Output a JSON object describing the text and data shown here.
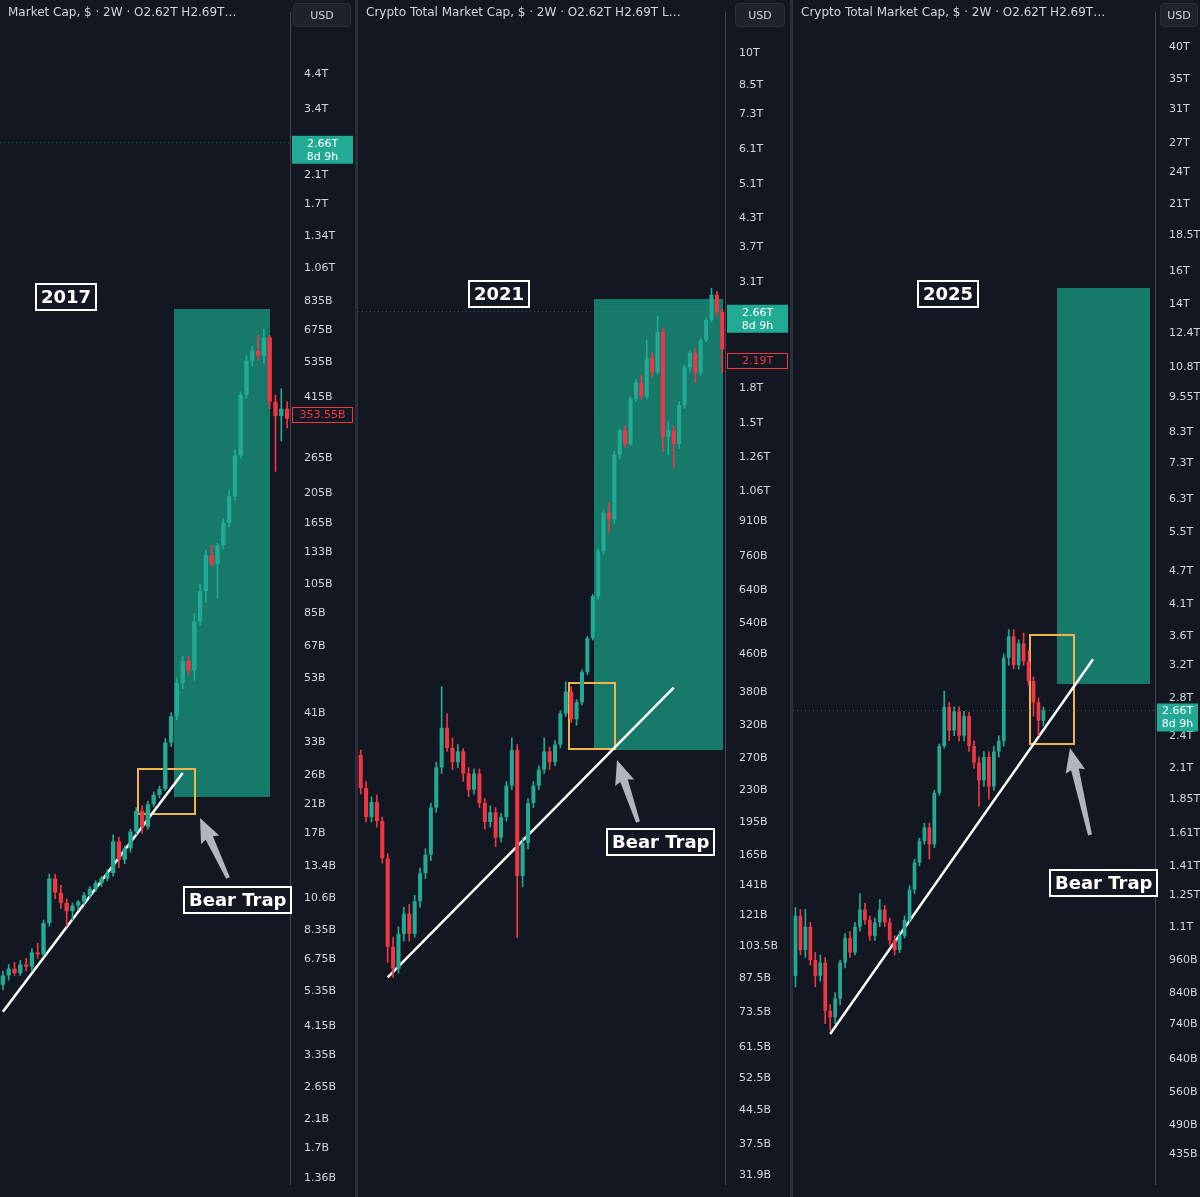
{
  "chart_data": [
    {
      "type": "candlestick",
      "title": "Market Cap, $ · 2W · O2.62T H2.69T…",
      "log": "y",
      "tick_labels": "y",
      "ylim": [
        1300000000.0,
        6900000000000.0
      ],
      "yticks": [
        {
          "value": 4400000000000.0,
          "label": "4.4T"
        },
        {
          "value": 3400000000000.0,
          "label": "3.4T"
        },
        {
          "value": 2100000000000.0,
          "label": "2.1T"
        },
        {
          "value": 1700000000000.0,
          "label": "1.7T"
        },
        {
          "value": 1340000000000.0,
          "label": "1.34T"
        },
        {
          "value": 1060000000000.0,
          "label": "1.06T"
        },
        {
          "value": 835000000000.0,
          "label": "835B"
        },
        {
          "value": 675000000000.0,
          "label": "675B"
        },
        {
          "value": 535000000000.0,
          "label": "535B"
        },
        {
          "value": 415000000000.0,
          "label": "415B"
        },
        {
          "value": 265000000000.0,
          "label": "265B"
        },
        {
          "value": 205000000000.0,
          "label": "205B"
        },
        {
          "value": 165000000000.0,
          "label": "165B"
        },
        {
          "value": 133000000000.0,
          "label": "133B"
        },
        {
          "value": 105000000000.0,
          "label": "105B"
        },
        {
          "value": 85000000000.0,
          "label": "85B"
        },
        {
          "value": 67000000000.0,
          "label": "67B"
        },
        {
          "value": 53000000000.0,
          "label": "53B"
        },
        {
          "value": 41000000000.0,
          "label": "41B"
        },
        {
          "value": 33000000000.0,
          "label": "33B"
        },
        {
          "value": 26000000000.0,
          "label": "26B"
        },
        {
          "value": 21000000000.0,
          "label": "21B"
        },
        {
          "value": 17000000000.0,
          "label": "17B"
        },
        {
          "value": 13400000000.0,
          "label": "13.4B"
        },
        {
          "value": 10600000000.0,
          "label": "10.6B"
        },
        {
          "value": 8350000000.0,
          "label": "8.35B"
        },
        {
          "value": 6750000000.0,
          "label": "6.75B"
        },
        {
          "value": 5350000000.0,
          "label": "5.35B"
        },
        {
          "value": 4150000000.0,
          "label": "4.15B"
        },
        {
          "value": 3350000000.0,
          "label": "3.35B"
        },
        {
          "value": 2650000000.0,
          "label": "2.65B"
        },
        {
          "value": 2100000000.0,
          "label": "2.1B"
        },
        {
          "value": 1700000000.0,
          "label": "1.7B"
        },
        {
          "value": 1360000000.0,
          "label": "1.36B"
        }
      ],
      "categories": [
        null,
        null,
        null,
        null,
        null,
        null,
        null,
        null,
        null,
        null,
        null,
        null,
        null,
        null,
        null,
        null,
        null,
        null,
        null,
        null,
        null,
        null,
        null,
        null,
        null,
        null,
        null,
        null,
        null,
        null,
        null,
        null,
        null,
        null,
        null,
        null,
        null,
        null,
        null,
        null,
        null,
        null,
        null,
        null,
        null,
        null,
        null,
        null,
        null,
        null
      ],
      "ohlc": [
        [
          5600000000.0,
          6200000000.0,
          5400000000.0,
          6000000000.0
        ],
        [
          6000000000.0,
          6500000000.0,
          5800000000.0,
          6300000000.0
        ],
        [
          6300000000.0,
          6600000000.0,
          6000000000.0,
          6100000000.0
        ],
        [
          6100000000.0,
          6700000000.0,
          6000000000.0,
          6500000000.0
        ],
        [
          6500000000.0,
          6800000000.0,
          6200000000.0,
          6400000000.0
        ],
        [
          6400000000.0,
          7300000000.0,
          6200000000.0,
          7100000000.0
        ],
        [
          7100000000.0,
          7600000000.0,
          6800000000.0,
          7000000000.0
        ],
        [
          7000000000.0,
          9000000000.0,
          6900000000.0,
          8800000000.0
        ],
        [
          8800000000.0,
          12600000000.0,
          8600000000.0,
          12200000000.0
        ],
        [
          12200000000.0,
          12600000000.0,
          10500000000.0,
          11000000000.0
        ],
        [
          11000000000.0,
          11600000000.0,
          9800000000.0,
          10200000000.0
        ],
        [
          10200000000.0,
          10500000000.0,
          8600000000.0,
          9600000000.0
        ],
        [
          9600000000.0,
          10200000000.0,
          9000000000.0,
          10000000000.0
        ],
        [
          10000000000.0,
          10400000000.0,
          9700000000.0,
          10300000000.0
        ],
        [
          10300000000.0,
          11000000000.0,
          10100000000.0,
          10800000000.0
        ],
        [
          10800000000.0,
          11500000000.0,
          10600000000.0,
          11300000000.0
        ],
        [
          11300000000.0,
          12000000000.0,
          11100000000.0,
          11800000000.0
        ],
        [
          11800000000.0,
          12400000000.0,
          11500000000.0,
          12200000000.0
        ],
        [
          12200000000.0,
          13000000000.0,
          12000000000.0,
          12700000000.0
        ],
        [
          12700000000.0,
          16800000000.0,
          12400000000.0,
          16000000000.0
        ],
        [
          16000000000.0,
          16500000000.0,
          13200000000.0,
          14000000000.0
        ],
        [
          14000000000.0,
          15500000000.0,
          13600000000.0,
          15200000000.0
        ],
        [
          15200000000.0,
          17500000000.0,
          14800000000.0,
          17200000000.0
        ],
        [
          17200000000.0,
          20500000000.0,
          16800000000.0,
          20000000000.0
        ],
        [
          20000000000.0,
          20800000000.0,
          17000000000.0,
          17800000000.0
        ],
        [
          17800000000.0,
          21500000000.0,
          17500000000.0,
          21000000000.0
        ],
        [
          21000000000.0,
          23000000000.0,
          20600000000.0,
          22500000000.0
        ],
        [
          22500000000.0,
          24000000000.0,
          22000000000.0,
          23500000000.0
        ],
        [
          23500000000.0,
          34000000000.0,
          23200000000.0,
          33000000000.0
        ],
        [
          33000000000.0,
          41000000000.0,
          32000000000.0,
          40000000000.0
        ],
        [
          40000000000.0,
          53000000000.0,
          39000000000.0,
          51000000000.0
        ],
        [
          51000000000.0,
          62000000000.0,
          49000000000.0,
          60000000000.0
        ],
        [
          60000000000.0,
          62000000000.0,
          54000000000.0,
          56000000000.0
        ],
        [
          56000000000.0,
          85000000000.0,
          52000000000.0,
          80000000000.0
        ],
        [
          80000000000.0,
          105000000000.0,
          78000000000.0,
          100000000000.0
        ],
        [
          100000000000.0,
          135000000000.0,
          92000000000.0,
          130000000000.0
        ],
        [
          130000000000.0,
          140000000000.0,
          120000000000.0,
          122000000000.0
        ],
        [
          122000000000.0,
          142000000000.0,
          95000000000.0,
          140000000000.0
        ],
        [
          140000000000.0,
          170000000000.0,
          136000000000.0,
          165000000000.0
        ],
        [
          165000000000.0,
          210000000000.0,
          160000000000.0,
          200000000000.0
        ],
        [
          200000000000.0,
          280000000000.0,
          195000000000.0,
          270000000000.0
        ],
        [
          270000000000.0,
          430000000000.0,
          265000000000.0,
          420000000000.0
        ],
        [
          420000000000.0,
          560000000000.0,
          410000000000.0,
          540000000000.0
        ],
        [
          540000000000.0,
          600000000000.0,
          520000000000.0,
          580000000000.0
        ],
        [
          580000000000.0,
          650000000000.0,
          540000000000.0,
          560000000000.0
        ],
        [
          560000000000.0,
          680000000000.0,
          530000000000.0,
          640000000000.0
        ],
        [
          640000000000.0,
          650000000000.0,
          380000000000.0,
          400000000000.0
        ],
        [
          400000000000.0,
          420000000000.0,
          240000000000.0,
          360000000000.0
        ],
        [
          360000000000.0,
          440000000000.0,
          300000000000.0,
          380000000000.0
        ],
        [
          380000000000.0,
          400000000000.0,
          330000000000.0,
          353550000000.0
        ]
      ],
      "series": [
        {
          "type": "line",
          "color": "#ffffff",
          "values": [
            4600000000.0,
            null,
            null,
            null,
            null,
            null,
            null,
            null,
            null,
            null,
            null,
            null,
            null,
            null,
            null,
            null,
            null,
            null,
            null,
            null,
            null,
            null,
            null,
            null,
            null,
            null,
            null,
            null,
            null,
            null,
            null,
            26400000000.0,
            null,
            null,
            null,
            null,
            null,
            null,
            null,
            null,
            null,
            null,
            null,
            null,
            null,
            null,
            null,
            null,
            null,
            null
          ]
        }
      ],
      "ref_lines": [
        {
          "axis": "y",
          "value": 2660000000000.0,
          "label": "2.66T 8d 9h",
          "color": "#22ab94",
          "line_style": "dotted"
        }
      ],
      "annotations": [
        "2017",
        "Bear Trap",
        "USD",
        "353.55B"
      ]
    },
    {
      "type": "candlestick",
      "title": "Crypto Total Market Cap, $ · 2W · O2.62T H2.69T L…",
      "log": "y",
      "tick_labels": "y",
      "ylim": [
        30500000000.0,
        12300000000000.0
      ],
      "yticks": [
        {
          "value": 10000000000000.0,
          "label": "10T"
        },
        {
          "value": 8500000000000.0,
          "label": "8.5T"
        },
        {
          "value": 7300000000000.0,
          "label": "7.3T"
        },
        {
          "value": 6100000000000.0,
          "label": "6.1T"
        },
        {
          "value": 5100000000000.0,
          "label": "5.1T"
        },
        {
          "value": 4300000000000.0,
          "label": "4.3T"
        },
        {
          "value": 3700000000000.0,
          "label": "3.7T"
        },
        {
          "value": 3100000000000.0,
          "label": "3.1T"
        },
        {
          "value": 1800000000000.0,
          "label": "1.8T"
        },
        {
          "value": 1500000000000.0,
          "label": "1.5T"
        },
        {
          "value": 1260000000000.0,
          "label": "1.26T"
        },
        {
          "value": 1060000000000.0,
          "label": "1.06T"
        },
        {
          "value": 910000000000.0,
          "label": "910B"
        },
        {
          "value": 760000000000.0,
          "label": "760B"
        },
        {
          "value": 640000000000.0,
          "label": "640B"
        },
        {
          "value": 540000000000.0,
          "label": "540B"
        },
        {
          "value": 460000000000.0,
          "label": "460B"
        },
        {
          "value": 380000000000.0,
          "label": "380B"
        },
        {
          "value": 320000000000.0,
          "label": "320B"
        },
        {
          "value": 270000000000.0,
          "label": "270B"
        },
        {
          "value": 230000000000.0,
          "label": "230B"
        },
        {
          "value": 195000000000.0,
          "label": "195B"
        },
        {
          "value": 165000000000.0,
          "label": "165B"
        },
        {
          "value": 141000000000.0,
          "label": "141B"
        },
        {
          "value": 121000000000.0,
          "label": "121B"
        },
        {
          "value": 103500000000.0,
          "label": "103.5B"
        },
        {
          "value": 87500000000.0,
          "label": "87.5B"
        },
        {
          "value": 73500000000.0,
          "label": "73.5B"
        },
        {
          "value": 61500000000.0,
          "label": "61.5B"
        },
        {
          "value": 52500000000.0,
          "label": "52.5B"
        },
        {
          "value": 44500000000.0,
          "label": "44.5B"
        },
        {
          "value": 37500000000.0,
          "label": "37.5B"
        },
        {
          "value": 31900000000.0,
          "label": "31.9B"
        }
      ],
      "categories": [
        null,
        null,
        null,
        null,
        null,
        null,
        null,
        null,
        null,
        null,
        null,
        null,
        null,
        null,
        null,
        null,
        null,
        null,
        null,
        null,
        null,
        null,
        null,
        null,
        null,
        null,
        null,
        null,
        null,
        null,
        null,
        null,
        null,
        null,
        null,
        null,
        null,
        null,
        null,
        null,
        null,
        null,
        null,
        null,
        null,
        null,
        null,
        null,
        null,
        null,
        null,
        null,
        null,
        null,
        null,
        null,
        null,
        null,
        null,
        null,
        null,
        null,
        null,
        null,
        null,
        null,
        null,
        null
      ],
      "ohlc": [
        [
          275000000000.0,
          282000000000.0,
          225000000000.0,
          232000000000.0
        ],
        [
          232000000000.0,
          240000000000.0,
          195000000000.0,
          200000000000.0
        ],
        [
          200000000000.0,
          222000000000.0,
          195000000000.0,
          216000000000.0
        ],
        [
          216000000000.0,
          224000000000.0,
          190000000000.0,
          196000000000.0
        ],
        [
          196000000000.0,
          200000000000.0,
          158000000000.0,
          162000000000.0
        ],
        [
          162000000000.0,
          166000000000.0,
          95000000000.0,
          103000000000.0
        ],
        [
          103000000000.0,
          108000000000.0,
          88000000000.0,
          92000000000.0
        ],
        [
          92000000000.0,
          114000000000.0,
          90000000000.0,
          110000000000.0
        ],
        [
          110000000000.0,
          126000000000.0,
          106000000000.0,
          122000000000.0
        ],
        [
          122000000000.0,
          128000000000.0,
          106000000000.0,
          110000000000.0
        ],
        [
          110000000000.0,
          134000000000.0,
          108000000000.0,
          130000000000.0
        ],
        [
          130000000000.0,
          154000000000.0,
          126000000000.0,
          150000000000.0
        ],
        [
          150000000000.0,
          170000000000.0,
          146000000000.0,
          165000000000.0
        ],
        [
          165000000000.0,
          215000000000.0,
          160000000000.0,
          210000000000.0
        ],
        [
          210000000000.0,
          265000000000.0,
          205000000000.0,
          258000000000.0
        ],
        [
          258000000000.0,
          390000000000.0,
          250000000000.0,
          316000000000.0
        ],
        [
          316000000000.0,
          340000000000.0,
          280000000000.0,
          285000000000.0
        ],
        [
          285000000000.0,
          300000000000.0,
          255000000000.0,
          265000000000.0
        ],
        [
          265000000000.0,
          290000000000.0,
          258000000000.0,
          280000000000.0
        ],
        [
          280000000000.0,
          284000000000.0,
          240000000000.0,
          250000000000.0
        ],
        [
          250000000000.0,
          258000000000.0,
          222000000000.0,
          230000000000.0
        ],
        [
          230000000000.0,
          256000000000.0,
          225000000000.0,
          250000000000.0
        ],
        [
          250000000000.0,
          256000000000.0,
          210000000000.0,
          215000000000.0
        ],
        [
          215000000000.0,
          220000000000.0,
          188000000000.0,
          195000000000.0
        ],
        [
          195000000000.0,
          212000000000.0,
          190000000000.0,
          205000000000.0
        ],
        [
          205000000000.0,
          210000000000.0,
          172000000000.0,
          180000000000.0
        ],
        [
          180000000000.0,
          204000000000.0,
          176000000000.0,
          200000000000.0
        ],
        [
          200000000000.0,
          240000000000.0,
          196000000000.0,
          235000000000.0
        ],
        [
          235000000000.0,
          300000000000.0,
          230000000000.0,
          282000000000.0
        ],
        [
          282000000000.0,
          290000000000.0,
          108000000000.0,
          148000000000.0
        ],
        [
          148000000000.0,
          180000000000.0,
          140000000000.0,
          175000000000.0
        ],
        [
          175000000000.0,
          220000000000.0,
          170000000000.0,
          215000000000.0
        ],
        [
          215000000000.0,
          240000000000.0,
          210000000000.0,
          235000000000.0
        ],
        [
          235000000000.0,
          260000000000.0,
          230000000000.0,
          255000000000.0
        ],
        [
          255000000000.0,
          300000000000.0,
          250000000000.0,
          280000000000.0
        ],
        [
          280000000000.0,
          286000000000.0,
          255000000000.0,
          265000000000.0
        ],
        [
          265000000000.0,
          296000000000.0,
          260000000000.0,
          290000000000.0
        ],
        [
          290000000000.0,
          345000000000.0,
          285000000000.0,
          340000000000.0
        ],
        [
          340000000000.0,
          400000000000.0,
          335000000000.0,
          380000000000.0
        ],
        [
          380000000000.0,
          390000000000.0,
          325000000000.0,
          330000000000.0
        ],
        [
          330000000000.0,
          365000000000.0,
          320000000000.0,
          360000000000.0
        ],
        [
          360000000000.0,
          425000000000.0,
          355000000000.0,
          420000000000.0
        ],
        [
          420000000000.0,
          505000000000.0,
          415000000000.0,
          500000000000.0
        ],
        [
          500000000000.0,
          625000000000.0,
          495000000000.0,
          620000000000.0
        ],
        [
          620000000000.0,
          790000000000.0,
          610000000000.0,
          780000000000.0
        ],
        [
          780000000000.0,
          960000000000.0,
          770000000000.0,
          950000000000.0
        ],
        [
          950000000000.0,
          1000000000000.0,
          860000000000.0,
          920000000000.0
        ],
        [
          920000000000.0,
          1300000000000.0,
          900000000000.0,
          1280000000000.0
        ],
        [
          1280000000000.0,
          1460000000000.0,
          1250000000000.0,
          1450000000000.0
        ],
        [
          1450000000000.0,
          1480000000000.0,
          1330000000000.0,
          1350000000000.0
        ],
        [
          1350000000000.0,
          1720000000000.0,
          1340000000000.0,
          1700000000000.0
        ],
        [
          1700000000000.0,
          1880000000000.0,
          1680000000000.0,
          1850000000000.0
        ],
        [
          1850000000000.0,
          1920000000000.0,
          1700000000000.0,
          1720000000000.0
        ],
        [
          1720000000000.0,
          2300000000000.0,
          1700000000000.0,
          2100000000000.0
        ],
        [
          2100000000000.0,
          2160000000000.0,
          1900000000000.0,
          1950000000000.0
        ],
        [
          1950000000000.0,
          2600000000000.0,
          1930000000000.0,
          2400000000000.0
        ],
        [
          2400000000000.0,
          2450000000000.0,
          1300000000000.0,
          1400000000000.0
        ],
        [
          1400000000000.0,
          1520000000000.0,
          1280000000000.0,
          1450000000000.0
        ],
        [
          1450000000000.0,
          1480000000000.0,
          1200000000000.0,
          1350000000000.0
        ],
        [
          1350000000000.0,
          1680000000000.0,
          1320000000000.0,
          1650000000000.0
        ],
        [
          1650000000000.0,
          2020000000000.0,
          1620000000000.0,
          2000000000000.0
        ],
        [
          2000000000000.0,
          2180000000000.0,
          1960000000000.0,
          2150000000000.0
        ],
        [
          2150000000000.0,
          2200000000000.0,
          1850000000000.0,
          1950000000000.0
        ],
        [
          1950000000000.0,
          2320000000000.0,
          1920000000000.0,
          2300000000000.0
        ],
        [
          2300000000000.0,
          2580000000000.0,
          2280000000000.0,
          2550000000000.0
        ],
        [
          2550000000000.0,
          3000000000000.0,
          2520000000000.0,
          2900000000000.0
        ],
        [
          2900000000000.0,
          2950000000000.0,
          2600000000000.0,
          2660000000000.0
        ],
        [
          2660000000000.0,
          2700000000000.0,
          1950000000000.0,
          2190000000000.0
        ]
      ],
      "series": [
        {
          "type": "line",
          "color": "#ffffff",
          "values": [
            null,
            null,
            null,
            null,
            null,
            88000000000.0,
            null,
            null,
            null,
            null,
            null,
            null,
            null,
            null,
            null,
            null,
            null,
            null,
            null,
            null,
            null,
            null,
            null,
            null,
            null,
            null,
            null,
            null,
            null,
            null,
            null,
            null,
            null,
            null,
            null,
            null,
            null,
            null,
            null,
            null,
            null,
            null,
            null,
            null,
            null,
            null,
            null,
            null,
            null,
            null,
            null,
            null,
            null,
            null,
            null,
            null,
            null,
            null,
            388000000000.0,
            null,
            null,
            null,
            null,
            null,
            null,
            null,
            null,
            null
          ]
        }
      ],
      "ref_lines": [
        {
          "axis": "y",
          "value": 2660000000000.0,
          "label": "2.66T 8d 9h",
          "color": "#22ab94",
          "line_style": "dotted"
        }
      ],
      "annotations": [
        "2021",
        "Bear Trap",
        "USD",
        "2.19T"
      ]
    },
    {
      "type": "candlestick",
      "title": "Crypto Total Market Cap, $ · 2W · O2.62T H2.69T…",
      "log": "y",
      "tick_labels": "y",
      "ylim": [
        384000000000.0,
        46000000000000.0
      ],
      "yticks": [
        {
          "value": 40000000000000.0,
          "label": "40T"
        },
        {
          "value": 35000000000000.0,
          "label": "35T"
        },
        {
          "value": 31000000000000.0,
          "label": "31T"
        },
        {
          "value": 27000000000000.0,
          "label": "27T"
        },
        {
          "value": 24000000000000.0,
          "label": "24T"
        },
        {
          "value": 21000000000000.0,
          "label": "21T"
        },
        {
          "value": 18500000000000.0,
          "label": "18.5T"
        },
        {
          "value": 16000000000000.0,
          "label": "16T"
        },
        {
          "value": 14000000000000.0,
          "label": "14T"
        },
        {
          "value": 12400000000000.0,
          "label": "12.4T"
        },
        {
          "value": 10800000000000.0,
          "label": "10.8T"
        },
        {
          "value": 9550000000000.0,
          "label": "9.55T"
        },
        {
          "value": 8300000000000.0,
          "label": "8.3T"
        },
        {
          "value": 7300000000000.0,
          "label": "7.3T"
        },
        {
          "value": 6300000000000.0,
          "label": "6.3T"
        },
        {
          "value": 5500000000000.0,
          "label": "5.5T"
        },
        {
          "value": 4700000000000.0,
          "label": "4.7T"
        },
        {
          "value": 4100000000000.0,
          "label": "4.1T"
        },
        {
          "value": 3600000000000.0,
          "label": "3.6T"
        },
        {
          "value": 3200000000000.0,
          "label": "3.2T"
        },
        {
          "value": 2800000000000.0,
          "label": "2.8T"
        },
        {
          "value": 2400000000000.0,
          "label": "2.4T"
        },
        {
          "value": 2100000000000.0,
          "label": "2.1T"
        },
        {
          "value": 1850000000000.0,
          "label": "1.85T"
        },
        {
          "value": 1610000000000.0,
          "label": "1.61T"
        },
        {
          "value": 1410000000000.0,
          "label": "1.41T"
        },
        {
          "value": 1250000000000.0,
          "label": "1.25T"
        },
        {
          "value": 1100000000000.0,
          "label": "1.1T"
        },
        {
          "value": 960000000000.0,
          "label": "960B"
        },
        {
          "value": 840000000000.0,
          "label": "840B"
        },
        {
          "value": 740000000000.0,
          "label": "740B"
        },
        {
          "value": 640000000000.0,
          "label": "640B"
        },
        {
          "value": 560000000000.0,
          "label": "560B"
        },
        {
          "value": 490000000000.0,
          "label": "490B"
        },
        {
          "value": 435000000000.0,
          "label": "435B"
        }
      ],
      "categories": [
        null,
        null,
        null,
        null,
        null,
        null,
        null,
        null,
        null,
        null,
        null,
        null,
        null,
        null,
        null,
        null,
        null,
        null,
        null,
        null,
        null,
        null,
        null,
        null,
        null,
        null,
        null,
        null,
        null,
        null,
        null,
        null,
        null,
        null,
        null,
        null,
        null,
        null,
        null,
        null,
        null,
        null,
        null,
        null,
        null,
        null,
        null,
        null,
        null,
        null,
        null,
        null,
        null,
        null,
        null,
        null,
        null,
        null,
        null,
        null,
        null,
        null,
        null,
        null,
        null,
        null,
        null,
        null,
        null,
        null,
        null,
        null,
        null
      ],
      "ohlc": [
        [
          900000000000.0,
          1190000000000.0,
          860000000000.0,
          1150000000000.0
        ],
        [
          1150000000000.0,
          1180000000000.0,
          980000000000.0,
          1000000000000.0
        ],
        [
          1000000000000.0,
          1180000000000.0,
          970000000000.0,
          1100000000000.0
        ],
        [
          1100000000000.0,
          1120000000000.0,
          940000000000.0,
          960000000000.0
        ],
        [
          960000000000.0,
          990000000000.0,
          860000000000.0,
          900000000000.0
        ],
        [
          900000000000.0,
          980000000000.0,
          880000000000.0,
          950000000000.0
        ],
        [
          950000000000.0,
          970000000000.0,
          740000000000.0,
          780000000000.0
        ],
        [
          780000000000.0,
          800000000000.0,
          720000000000.0,
          760000000000.0
        ],
        [
          760000000000.0,
          840000000000.0,
          740000000000.0,
          820000000000.0
        ],
        [
          820000000000.0,
          960000000000.0,
          800000000000.0,
          950000000000.0
        ],
        [
          950000000000.0,
          1070000000000.0,
          930000000000.0,
          1050000000000.0
        ],
        [
          1050000000000.0,
          1080000000000.0,
          970000000000.0,
          990000000000.0
        ],
        [
          990000000000.0,
          1120000000000.0,
          980000000000.0,
          1100000000000.0
        ],
        [
          1100000000000.0,
          1260000000000.0,
          1080000000000.0,
          1180000000000.0
        ],
        [
          1180000000000.0,
          1210000000000.0,
          1110000000000.0,
          1130000000000.0
        ],
        [
          1130000000000.0,
          1150000000000.0,
          1040000000000.0,
          1060000000000.0
        ],
        [
          1060000000000.0,
          1140000000000.0,
          1040000000000.0,
          1120000000000.0
        ],
        [
          1120000000000.0,
          1230000000000.0,
          1100000000000.0,
          1180000000000.0
        ],
        [
          1180000000000.0,
          1200000000000.0,
          1100000000000.0,
          1120000000000.0
        ],
        [
          1120000000000.0,
          1140000000000.0,
          1020000000000.0,
          1040000000000.0
        ],
        [
          1040000000000.0,
          1060000000000.0,
          980000000000.0,
          1000000000000.0
        ],
        [
          1000000000000.0,
          1080000000000.0,
          990000000000.0,
          1060000000000.0
        ],
        [
          1060000000000.0,
          1150000000000.0,
          1050000000000.0,
          1130000000000.0
        ],
        [
          1130000000000.0,
          1300000000000.0,
          1120000000000.0,
          1280000000000.0
        ],
        [
          1280000000000.0,
          1450000000000.0,
          1260000000000.0,
          1430000000000.0
        ],
        [
          1430000000000.0,
          1580000000000.0,
          1410000000000.0,
          1560000000000.0
        ],
        [
          1560000000000.0,
          1680000000000.0,
          1540000000000.0,
          1650000000000.0
        ],
        [
          1650000000000.0,
          1680000000000.0,
          1450000000000.0,
          1540000000000.0
        ],
        [
          1540000000000.0,
          1920000000000.0,
          1520000000000.0,
          1900000000000.0
        ],
        [
          1900000000000.0,
          2320000000000.0,
          1880000000000.0,
          2300000000000.0
        ],
        [
          2300000000000.0,
          2880000000000.0,
          2280000000000.0,
          2700000000000.0
        ],
        [
          2700000000000.0,
          2750000000000.0,
          2350000000000.0,
          2450000000000.0
        ],
        [
          2450000000000.0,
          2700000000000.0,
          2400000000000.0,
          2650000000000.0
        ],
        [
          2650000000000.0,
          2700000000000.0,
          2350000000000.0,
          2400000000000.0
        ],
        [
          2400000000000.0,
          2650000000000.0,
          2350000000000.0,
          2600000000000.0
        ],
        [
          2600000000000.0,
          2640000000000.0,
          2250000000000.0,
          2300000000000.0
        ],
        [
          2300000000000.0,
          2350000000000.0,
          2100000000000.0,
          2150000000000.0
        ],
        [
          2150000000000.0,
          2200000000000.0,
          1800000000000.0,
          2000000000000.0
        ],
        [
          2000000000000.0,
          2250000000000.0,
          1950000000000.0,
          2200000000000.0
        ],
        [
          2200000000000.0,
          2250000000000.0,
          1850000000000.0,
          1950000000000.0
        ],
        [
          1950000000000.0,
          2300000000000.0,
          1920000000000.0,
          2250000000000.0
        ],
        [
          2250000000000.0,
          2400000000000.0,
          2200000000000.0,
          2350000000000.0
        ],
        [
          2350000000000.0,
          3350000000000.0,
          2300000000000.0,
          3300000000000.0
        ],
        [
          3300000000000.0,
          3700000000000.0,
          3200000000000.0,
          3600000000000.0
        ],
        [
          3600000000000.0,
          3700000000000.0,
          3150000000000.0,
          3200000000000.0
        ],
        [
          3200000000000.0,
          3550000000000.0,
          3150000000000.0,
          3500000000000.0
        ],
        [
          3500000000000.0,
          3650000000000.0,
          3200000000000.0,
          3250000000000.0
        ],
        [
          3250000000000.0,
          3400000000000.0,
          2950000000000.0,
          3000000000000.0
        ],
        [
          3000000000000.0,
          3050000000000.0,
          2600000000000.0,
          2750000000000.0
        ],
        [
          2750000000000.0,
          2800000000000.0,
          2400000000000.0,
          2550000000000.0
        ],
        [
          2550000000000.0,
          2700000000000.0,
          2500000000000.0,
          2660000000000.0
        ],
        null,
        null,
        null,
        null,
        null,
        null,
        null,
        null,
        null,
        null,
        null,
        null,
        null,
        null,
        null,
        null,
        null,
        null,
        null,
        null,
        null,
        null
      ],
      "series": [
        {
          "type": "line",
          "color": "#ffffff",
          "values": [
            null,
            null,
            null,
            null,
            null,
            null,
            null,
            710000000000.0,
            null,
            null,
            null,
            null,
            null,
            null,
            null,
            null,
            null,
            null,
            null,
            null,
            null,
            null,
            null,
            null,
            null,
            null,
            null,
            null,
            null,
            null,
            null,
            null,
            null,
            null,
            null,
            null,
            null,
            null,
            null,
            null,
            null,
            null,
            null,
            null,
            null,
            null,
            null,
            null,
            null,
            null,
            null,
            null,
            null,
            null,
            null,
            null,
            null,
            null,
            null,
            null,
            3280000000000.0,
            null,
            null,
            null,
            null,
            null,
            null,
            null,
            null,
            null,
            null,
            null,
            null
          ]
        }
      ],
      "ref_lines": [
        {
          "axis": "y",
          "value": 2660000000000.0,
          "label": "2.66T 8d 9h",
          "color": "#22ab94",
          "line_style": "dotted"
        }
      ],
      "annotations": [
        "2025",
        "Bear Trap",
        "USD"
      ]
    }
  ]
}
